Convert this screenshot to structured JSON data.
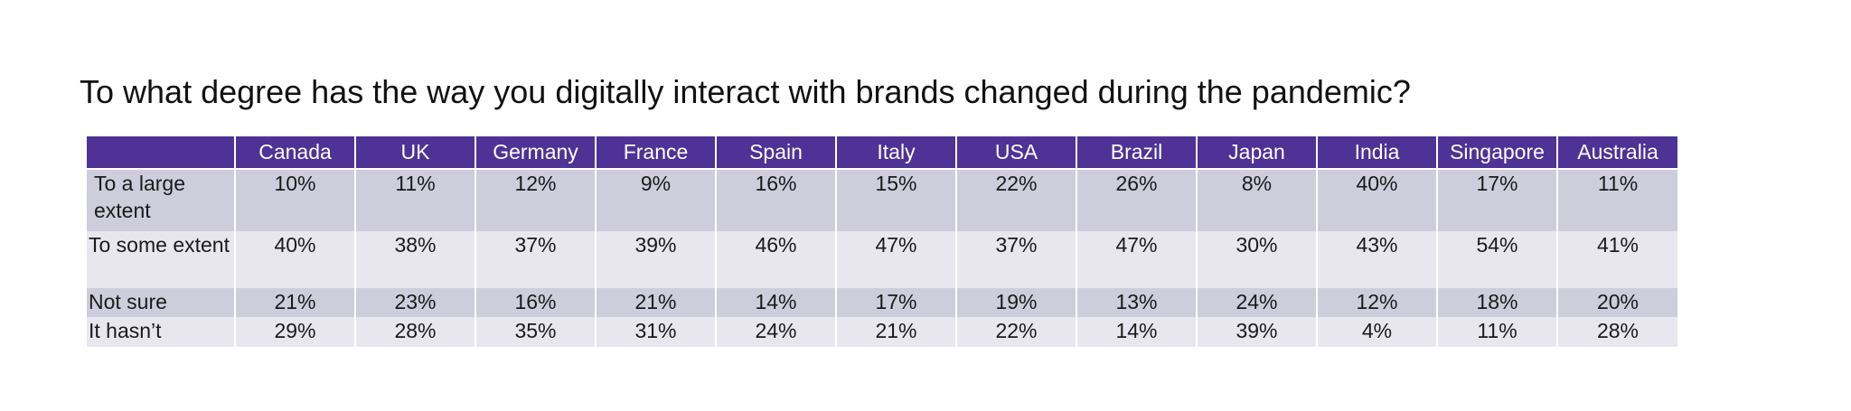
{
  "chart_data": {
    "type": "table",
    "title": "To what degree has the way you digitally interact with brands changed during the pandemic?",
    "columns": [
      "Canada",
      "UK",
      "Germany",
      "France",
      "Spain",
      "Italy",
      "USA",
      "Brazil",
      "Japan",
      "India",
      "Singapore",
      "Australia"
    ],
    "rows": [
      {
        "label": "To a large extent",
        "values": [
          "10%",
          "11%",
          "12%",
          "9%",
          "16%",
          "15%",
          "22%",
          "26%",
          "8%",
          "40%",
          "17%",
          "11%"
        ]
      },
      {
        "label": "To some extent",
        "values": [
          "40%",
          "38%",
          "37%",
          "39%",
          "46%",
          "47%",
          "37%",
          "47%",
          "30%",
          "43%",
          "54%",
          "41%"
        ]
      },
      {
        "label": "Not sure",
        "values": [
          "21%",
          "23%",
          "16%",
          "21%",
          "14%",
          "17%",
          "19%",
          "13%",
          "24%",
          "12%",
          "18%",
          "20%"
        ]
      },
      {
        "label": "It hasn’t",
        "values": [
          "29%",
          "28%",
          "35%",
          "31%",
          "24%",
          "21%",
          "22%",
          "14%",
          "39%",
          "4%",
          "11%",
          "28%"
        ]
      }
    ],
    "colors": {
      "header_bg": "#4f3296",
      "header_text": "#ffffff",
      "row_dark": "#cecddc",
      "row_light": "#e8e7ef"
    }
  }
}
